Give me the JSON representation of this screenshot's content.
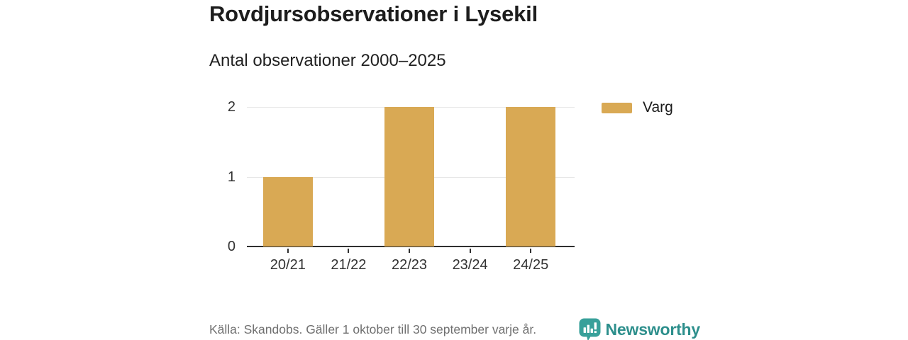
{
  "chart": {
    "title": "Rovdjursobservationer i Lysekil",
    "subtitle": "Antal observationer 2000–2025",
    "legend": [
      {
        "label": "Varg",
        "color": "#d9a954"
      }
    ]
  },
  "chart_data": {
    "type": "bar",
    "categories": [
      "20/21",
      "21/22",
      "22/23",
      "23/24",
      "24/25"
    ],
    "series": [
      {
        "name": "Varg",
        "values": [
          1,
          0,
          2,
          0,
          2
        ],
        "color": "#d9a954"
      }
    ],
    "title": "Rovdjursobservationer i Lysekil",
    "subtitle": "Antal observationer 2000–2025",
    "xlabel": "",
    "ylabel": "",
    "ylim": [
      0,
      2
    ],
    "yticks": [
      0,
      1,
      2
    ],
    "grid": true,
    "legend_position": "right"
  },
  "footer": {
    "source": "Källa: Skandobs. Gäller 1 oktober till 30 september varje år.",
    "brand": "Newsworthy"
  },
  "colors": {
    "bar": "#d9a954",
    "teal_text": "#2d8f8c",
    "teal_logo": "#38a09a",
    "grid": "#e7e7e7",
    "axis": "#2f2f2f",
    "title_text": "#1d1d1d",
    "muted_text": "#707070"
  },
  "icons": {
    "brand_logo": "newsworthy-speech-bubble-barchart-icon"
  }
}
